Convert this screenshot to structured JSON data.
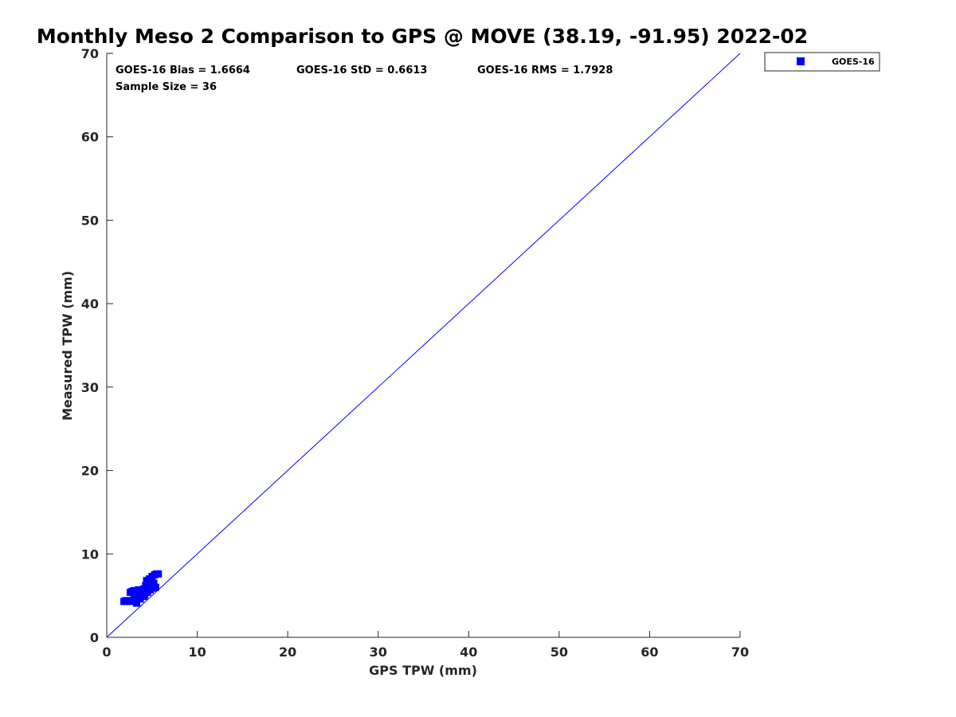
{
  "chart_data": {
    "type": "scatter",
    "title": "Monthly Meso 2 Comparison to GPS @ MOVE (38.19, -91.95) 2022-02",
    "xlabel": "GPS TPW (mm)",
    "ylabel": "Measured TPW (mm)",
    "xlim": [
      0,
      70
    ],
    "ylim": [
      0,
      70
    ],
    "xticks": [
      "0",
      "10",
      "20",
      "30",
      "40",
      "50",
      "60",
      "70"
    ],
    "yticks": [
      "0",
      "10",
      "20",
      "30",
      "40",
      "50",
      "60",
      "70"
    ],
    "reference_line": {
      "x": [
        0,
        70
      ],
      "y": [
        0,
        70
      ],
      "color": "#0000ff"
    },
    "grid": false,
    "legend_position": "outside-top-right",
    "stats": [
      "GOES-16 Bias = 1.6664",
      "GOES-16 StD = 0.6613",
      "GOES-16 RMS = 1.7928",
      "Sample Size = 36"
    ],
    "series": [
      {
        "name": "GOES-16",
        "color": "#0000ff",
        "marker": "square",
        "points": [
          [
            1.9,
            4.3
          ],
          [
            2.1,
            4.4
          ],
          [
            2.3,
            4.3
          ],
          [
            2.5,
            4.4
          ],
          [
            2.7,
            4.3
          ],
          [
            2.6,
            5.4
          ],
          [
            2.8,
            5.5
          ],
          [
            3.0,
            4.6
          ],
          [
            3.0,
            5.6
          ],
          [
            3.2,
            4.9
          ],
          [
            3.3,
            4.1
          ],
          [
            3.4,
            5.0
          ],
          [
            3.5,
            5.7
          ],
          [
            3.6,
            5.2
          ],
          [
            3.7,
            4.6
          ],
          [
            3.8,
            5.0
          ],
          [
            3.9,
            5.5
          ],
          [
            4.0,
            5.3
          ],
          [
            4.1,
            4.9
          ],
          [
            4.1,
            5.8
          ],
          [
            4.2,
            5.1
          ],
          [
            4.3,
            5.6
          ],
          [
            4.3,
            6.2
          ],
          [
            4.4,
            6.8
          ],
          [
            4.5,
            5.4
          ],
          [
            4.6,
            6.1
          ],
          [
            4.7,
            7.0
          ],
          [
            4.8,
            5.7
          ],
          [
            4.9,
            6.3
          ],
          [
            5.0,
            7.3
          ],
          [
            5.1,
            5.9
          ],
          [
            5.2,
            6.5
          ],
          [
            5.3,
            7.5
          ],
          [
            5.4,
            6.0
          ],
          [
            5.5,
            7.6
          ],
          [
            5.7,
            7.6
          ]
        ]
      }
    ]
  }
}
